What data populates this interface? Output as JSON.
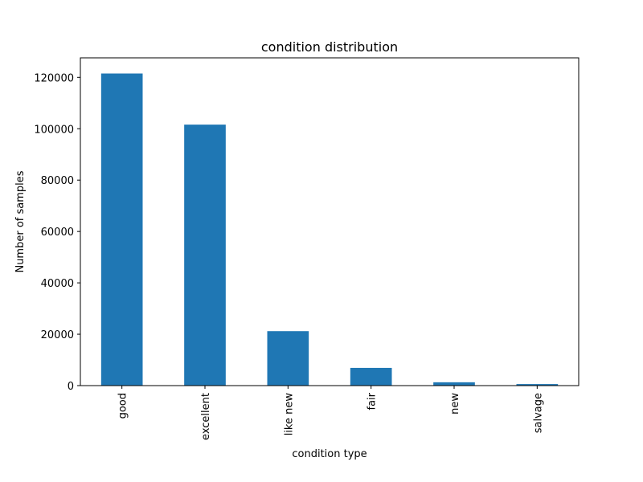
{
  "chart_data": {
    "type": "bar",
    "title": "condition distribution",
    "xlabel": "condition type",
    "ylabel": "Number of samples",
    "categories": [
      "good",
      "excellent",
      "like new",
      "fair",
      "new",
      "salvage"
    ],
    "values": [
      121500,
      101600,
      21200,
      6900,
      1300,
      600
    ],
    "ylim": [
      0,
      127600
    ],
    "yticks": [
      0,
      20000,
      40000,
      60000,
      80000,
      100000,
      120000
    ],
    "ytick_labels": [
      "0",
      "20000",
      "40000",
      "60000",
      "80000",
      "100000",
      "120000"
    ],
    "bar_color": "#1f77b4",
    "grid": false
  }
}
